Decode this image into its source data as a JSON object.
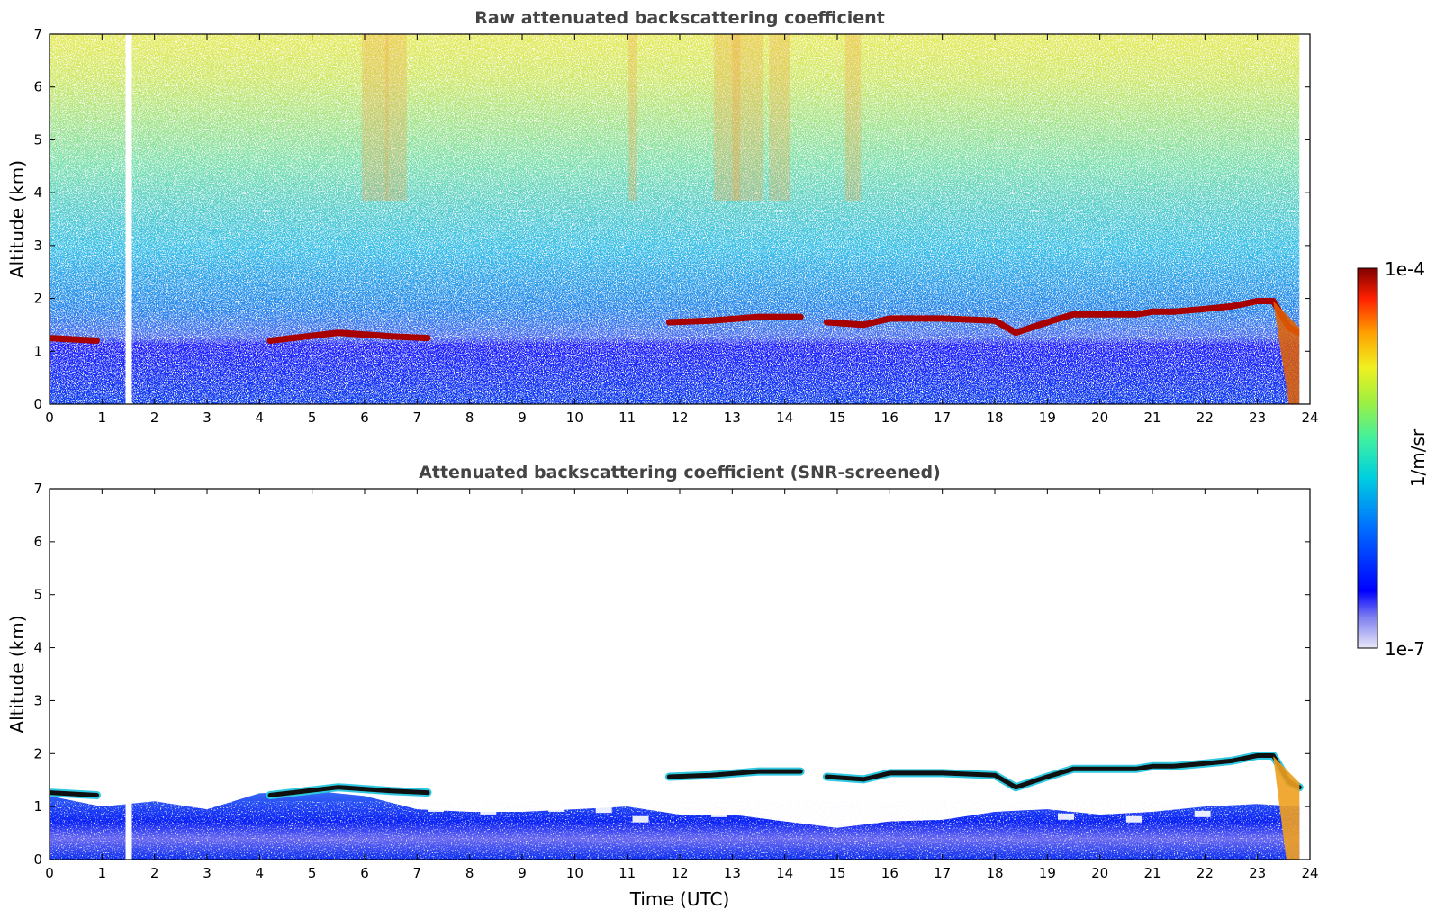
{
  "chart_data": [
    {
      "type": "heatmap",
      "title": "Raw attenuated backscattering coefficient",
      "xlabel": "",
      "ylabel": "Altitude (km)",
      "xlim": [
        0,
        24
      ],
      "ylim": [
        0,
        7
      ],
      "xticks": [
        0,
        1,
        2,
        3,
        4,
        5,
        6,
        7,
        8,
        9,
        10,
        11,
        12,
        13,
        14,
        15,
        16,
        17,
        18,
        19,
        20,
        21,
        22,
        23,
        24
      ],
      "yticks": [
        0,
        1,
        2,
        3,
        4,
        5,
        6,
        7
      ],
      "data_gap_time_utc": 1.5,
      "cloud_layer": {
        "time_utc": [
          0,
          0.9,
          4.2,
          5.5,
          6.5,
          7.2,
          11.8,
          12.6,
          13.5,
          14.3,
          14.8,
          15.5,
          16.0,
          17.0,
          18.0,
          18.4,
          19.0,
          19.5,
          20.7,
          21.0,
          21.4,
          22.0,
          22.5,
          23.0,
          23.3,
          23.6,
          23.8
        ],
        "altitude_km": [
          1.25,
          1.2,
          1.2,
          1.35,
          1.28,
          1.25,
          1.55,
          1.58,
          1.65,
          1.65,
          1.55,
          1.5,
          1.62,
          1.62,
          1.58,
          1.35,
          1.55,
          1.7,
          1.7,
          1.75,
          1.75,
          1.8,
          1.85,
          1.95,
          1.95,
          1.45,
          1.35
        ]
      }
    },
    {
      "type": "heatmap",
      "title": "Attenuated backscattering coefficient (SNR-screened)",
      "xlabel": "Time (UTC)",
      "ylabel": "Altitude (km)",
      "xlim": [
        0,
        24
      ],
      "ylim": [
        0,
        7
      ],
      "xticks": [
        0,
        1,
        2,
        3,
        4,
        5,
        6,
        7,
        8,
        9,
        10,
        11,
        12,
        13,
        14,
        15,
        16,
        17,
        18,
        19,
        20,
        21,
        22,
        23,
        24
      ],
      "yticks": [
        0,
        1,
        2,
        3,
        4,
        5,
        6,
        7
      ],
      "data_gap_time_utc": 1.5,
      "boundary_layer_top_km": 0.8
    }
  ],
  "colorbar": {
    "label": "1/m/sr",
    "max_label": "1e-4",
    "min_label": "1e-7",
    "scale": "log",
    "colors": [
      "#e8e8f8",
      "#9090f0",
      "#0000ff",
      "#0080ff",
      "#00d0e0",
      "#40f0a0",
      "#a0f040",
      "#f0f020",
      "#ffa000",
      "#ff3000",
      "#c00000",
      "#800000"
    ]
  }
}
